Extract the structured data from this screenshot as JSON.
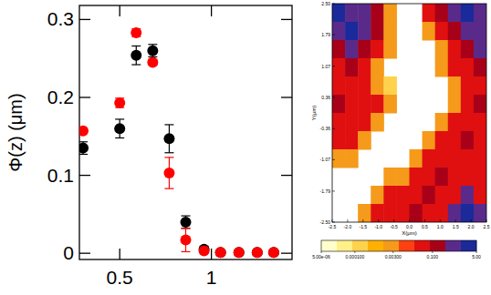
{
  "chart_data": [
    {
      "type": "scatter",
      "ylabel": "Φ(z) (μm)",
      "xlim": [
        0.28,
        1.44
      ],
      "xticks": [
        0.5,
        1
      ],
      "ylim": [
        -0.008,
        0.318
      ],
      "yticks": [
        0,
        0.1,
        0.2,
        0.3
      ],
      "x": [
        0.3,
        0.5,
        0.59,
        0.68,
        0.77,
        0.86,
        0.96,
        1.05,
        1.15,
        1.25,
        1.34
      ],
      "series": [
        {
          "color": "#000000",
          "marker": "circle",
          "values": [
            0.135,
            0.16,
            0.254,
            0.26,
            0.147,
            0.04,
            0.005,
            0.001,
            0.001,
            0.001,
            0.001
          ],
          "errors": [
            0.008,
            0.012,
            0.012,
            0.008,
            0.018,
            0.008,
            0.004,
            0.002,
            0.001,
            0.001,
            0.001
          ]
        },
        {
          "color": "#ff0000",
          "marker": "circle",
          "values": [
            0.157,
            0.193,
            0.283,
            0.245,
            0.103,
            0.017,
            0.003,
            0.001,
            0.001,
            0.001,
            0.001
          ],
          "errors": [
            0.003,
            0.006,
            0.005,
            0.003,
            0.02,
            0.015,
            0.002,
            0.001,
            0.001,
            0.001,
            0.001
          ]
        }
      ]
    },
    {
      "type": "heatmap",
      "xlabel": "X(μm)",
      "ylabel": "Y(μm)",
      "xlim": [
        -2.5,
        2.5
      ],
      "xticks": [
        -2.5,
        {
          "value": -2,
          "label": "-2.0"
        },
        -1.5,
        {
          "value": -1,
          "label": "-1.0"
        },
        -0.5,
        {
          "value": 0,
          "label": "0.0"
        },
        0.5,
        {
          "value": 1,
          "label": "1.0"
        },
        1.5,
        {
          "value": 2,
          "label": "2.0"
        },
        2.5
      ],
      "ylim": [
        -2.5,
        2.5
      ],
      "yticks": [
        {
          "value": 2.5,
          "label": "2.50"
        },
        1.79,
        1.07,
        0.36,
        -0.36,
        -1.07,
        -1.79,
        {
          "value": -2.5,
          "label": "-2.50"
        }
      ],
      "log": true,
      "colorbar_range": [
        5e-06,
        5
      ],
      "colorbar_ticks": [
        {
          "value": 5e-06,
          "label": "5.00e-06"
        },
        {
          "value": 0.0001,
          "label": "0.000100"
        },
        {
          "value": 0.003,
          "label": "0.00300"
        },
        {
          "value": 0.1,
          "label": "0.100"
        },
        {
          "value": 5,
          "label": "5.00"
        }
      ],
      "colors": [
        "#ffffcc",
        "#fff08a",
        "#ffd24d",
        "#ffb000",
        "#f59a1a",
        "#ff4010",
        "#e01010",
        "#a80018",
        "#5a2a8a",
        "#1a2a9a"
      ],
      "cells": [
        [
          4,
          1,
          1,
          0.1,
          0.002,
          null,
          null,
          0.03,
          0.1,
          1,
          4,
          1
        ],
        [
          1,
          4,
          1,
          0.1,
          0.002,
          null,
          null,
          0.002,
          0.03,
          0.1,
          1,
          1
        ],
        [
          0.1,
          1,
          0.1,
          0.03,
          0.002,
          null,
          null,
          null,
          0.002,
          0.03,
          0.1,
          1
        ],
        [
          0.03,
          0.1,
          0.03,
          0.002,
          null,
          null,
          null,
          null,
          0.002,
          0.03,
          0.03,
          0.1
        ],
        [
          0.03,
          0.03,
          0.03,
          0.002,
          0.0002,
          null,
          null,
          null,
          null,
          0.002,
          0.03,
          0.03
        ],
        [
          0.1,
          0.03,
          0.03,
          0.03,
          0.002,
          null,
          null,
          null,
          null,
          0.002,
          0.03,
          0.1
        ],
        [
          0.03,
          0.03,
          0.03,
          0.002,
          null,
          null,
          null,
          null,
          0.002,
          0.03,
          0.03,
          0.03
        ],
        [
          0.03,
          0.03,
          0.002,
          null,
          null,
          null,
          null,
          0.002,
          0.03,
          0.03,
          0.1,
          0.03
        ],
        [
          0.002,
          0.002,
          null,
          null,
          null,
          null,
          0.002,
          0.03,
          0.03,
          0.03,
          0.03,
          0.03
        ],
        [
          null,
          null,
          null,
          null,
          0.002,
          0.002,
          0.03,
          0.03,
          0.1,
          0.03,
          0.03,
          0.03
        ],
        [
          null,
          null,
          null,
          0.002,
          0.03,
          0.03,
          0.03,
          0.1,
          0.03,
          0.03,
          1,
          0.03
        ],
        [
          null,
          null,
          0.002,
          0.03,
          0.03,
          0.03,
          0.1,
          0.03,
          0.03,
          1,
          4,
          1
        ]
      ]
    }
  ]
}
